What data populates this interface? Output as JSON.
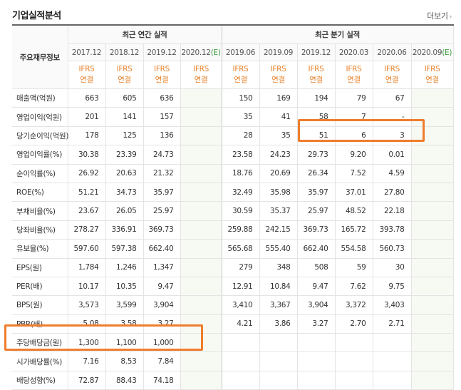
{
  "header": {
    "title": "기업실적분석",
    "more_label": "더보기",
    "more_icon": "chevron-right-icon"
  },
  "table": {
    "row_header_label": "주요재무정보",
    "group_annual": "최근 연간 실적",
    "group_quarter": "최근 분기 실적",
    "periods_annual": [
      "2017.12",
      "2018.12",
      "2019.12",
      "2020.12"
    ],
    "periods_quarter": [
      "2019.06",
      "2019.09",
      "2019.12",
      "2020.03",
      "2020.06",
      "2020.09"
    ],
    "estimate_mark": "(E)",
    "basis_top": "IFRS",
    "basis_bottom": "연결",
    "rows": [
      {
        "label": "매출액(억원)",
        "annual": [
          "663",
          "605",
          "636",
          ""
        ],
        "quarter": [
          "150",
          "169",
          "194",
          "79",
          "67",
          ""
        ]
      },
      {
        "label": "영업이익(억원)",
        "annual": [
          "201",
          "141",
          "157",
          ""
        ],
        "quarter": [
          "35",
          "41",
          "58",
          "7",
          "-",
          ""
        ]
      },
      {
        "label": "당기순이익(억원)",
        "annual": [
          "178",
          "125",
          "136",
          ""
        ],
        "quarter": [
          "28",
          "35",
          "51",
          "6",
          "3",
          ""
        ]
      },
      {
        "label": "영업이익률(%)",
        "annual": [
          "30.38",
          "23.39",
          "24.73",
          ""
        ],
        "quarter": [
          "23.58",
          "24.23",
          "29.73",
          "9.20",
          "0.01",
          ""
        ]
      },
      {
        "label": "순이익률(%)",
        "annual": [
          "26.92",
          "20.63",
          "21.32",
          ""
        ],
        "quarter": [
          "18.76",
          "20.69",
          "26.34",
          "7.52",
          "4.59",
          ""
        ]
      },
      {
        "label": "ROE(%)",
        "annual": [
          "51.21",
          "34.73",
          "35.97",
          ""
        ],
        "quarter": [
          "32.49",
          "35.98",
          "35.97",
          "37.01",
          "27.80",
          ""
        ]
      },
      {
        "label": "부채비율(%)",
        "annual": [
          "23.67",
          "26.05",
          "25.97",
          ""
        ],
        "quarter": [
          "30.59",
          "35.37",
          "25.97",
          "48.52",
          "22.18",
          ""
        ]
      },
      {
        "label": "당좌비율(%)",
        "annual": [
          "278.27",
          "336.91",
          "369.73",
          ""
        ],
        "quarter": [
          "259.88",
          "242.15",
          "369.73",
          "165.72",
          "393.78",
          ""
        ]
      },
      {
        "label": "유보율(%)",
        "annual": [
          "597.60",
          "597.38",
          "662.40",
          ""
        ],
        "quarter": [
          "565.68",
          "555.40",
          "662.40",
          "554.58",
          "560.73",
          ""
        ]
      },
      {
        "label": "EPS(원)",
        "annual": [
          "1,784",
          "1,246",
          "1,347",
          ""
        ],
        "quarter": [
          "279",
          "348",
          "508",
          "59",
          "30",
          ""
        ]
      },
      {
        "label": "PER(배)",
        "annual": [
          "10.17",
          "10.35",
          "9.47",
          ""
        ],
        "quarter": [
          "12.91",
          "10.84",
          "9.47",
          "7.62",
          "9.75",
          ""
        ]
      },
      {
        "label": "BPS(원)",
        "annual": [
          "3,573",
          "3,599",
          "3,904",
          ""
        ],
        "quarter": [
          "3,410",
          "3,367",
          "3,904",
          "3,372",
          "3,403",
          ""
        ]
      },
      {
        "label": "PBR(배)",
        "annual": [
          "5.08",
          "3.58",
          "3.27",
          ""
        ],
        "quarter": [
          "4.21",
          "3.86",
          "3.27",
          "2.70",
          "2.71",
          ""
        ]
      },
      {
        "label": "주당배당금(원)",
        "annual": [
          "1,300",
          "1,100",
          "1,000",
          ""
        ],
        "quarter": [
          "",
          "",
          "",
          "",
          "",
          ""
        ]
      },
      {
        "label": "시가배당률(%)",
        "annual": [
          "7.16",
          "8.53",
          "7.84",
          ""
        ],
        "quarter": [
          "",
          "",
          "",
          "",
          "",
          ""
        ]
      },
      {
        "label": "배당성향(%)",
        "annual": [
          "72.87",
          "88.43",
          "74.18",
          ""
        ],
        "quarter": [
          "",
          "",
          "",
          "",
          "",
          ""
        ]
      }
    ]
  },
  "highlight_color": "#ef7d2d"
}
